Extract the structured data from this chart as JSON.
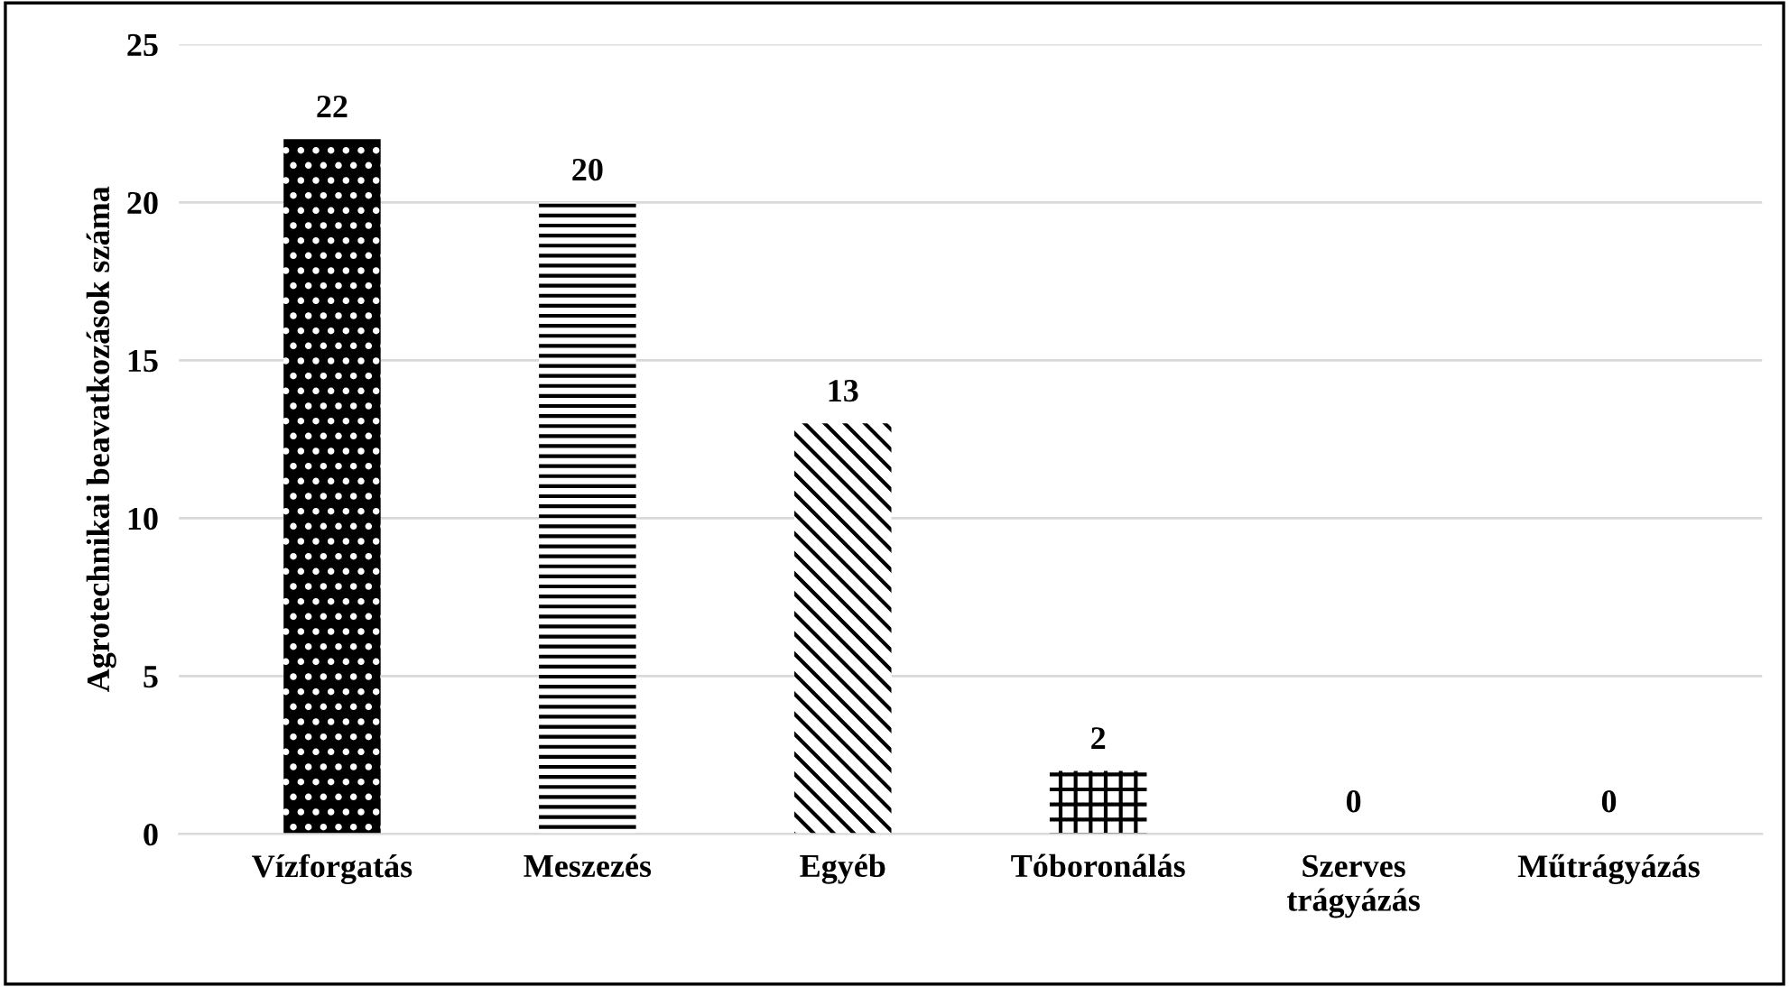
{
  "chart_data": {
    "type": "bar",
    "ylabel": "Agrotechnikai beavatkozások száma",
    "categories": [
      "Vízforgatás",
      "Meszezés",
      "Egyéb",
      "Tóboronálás",
      "Szerves\ntrágyázás",
      "Műtrágyázás"
    ],
    "values": [
      22,
      20,
      13,
      2,
      0,
      0
    ],
    "colors": [
      "#000000",
      "#ffffff",
      "#ffffff",
      "#ffffff",
      "#ffffff",
      "#ffffff"
    ],
    "ylim": [
      0,
      25
    ],
    "yticks": [
      0,
      5,
      10,
      15,
      20,
      25
    ],
    "grid": "y",
    "data_labels": true
  }
}
